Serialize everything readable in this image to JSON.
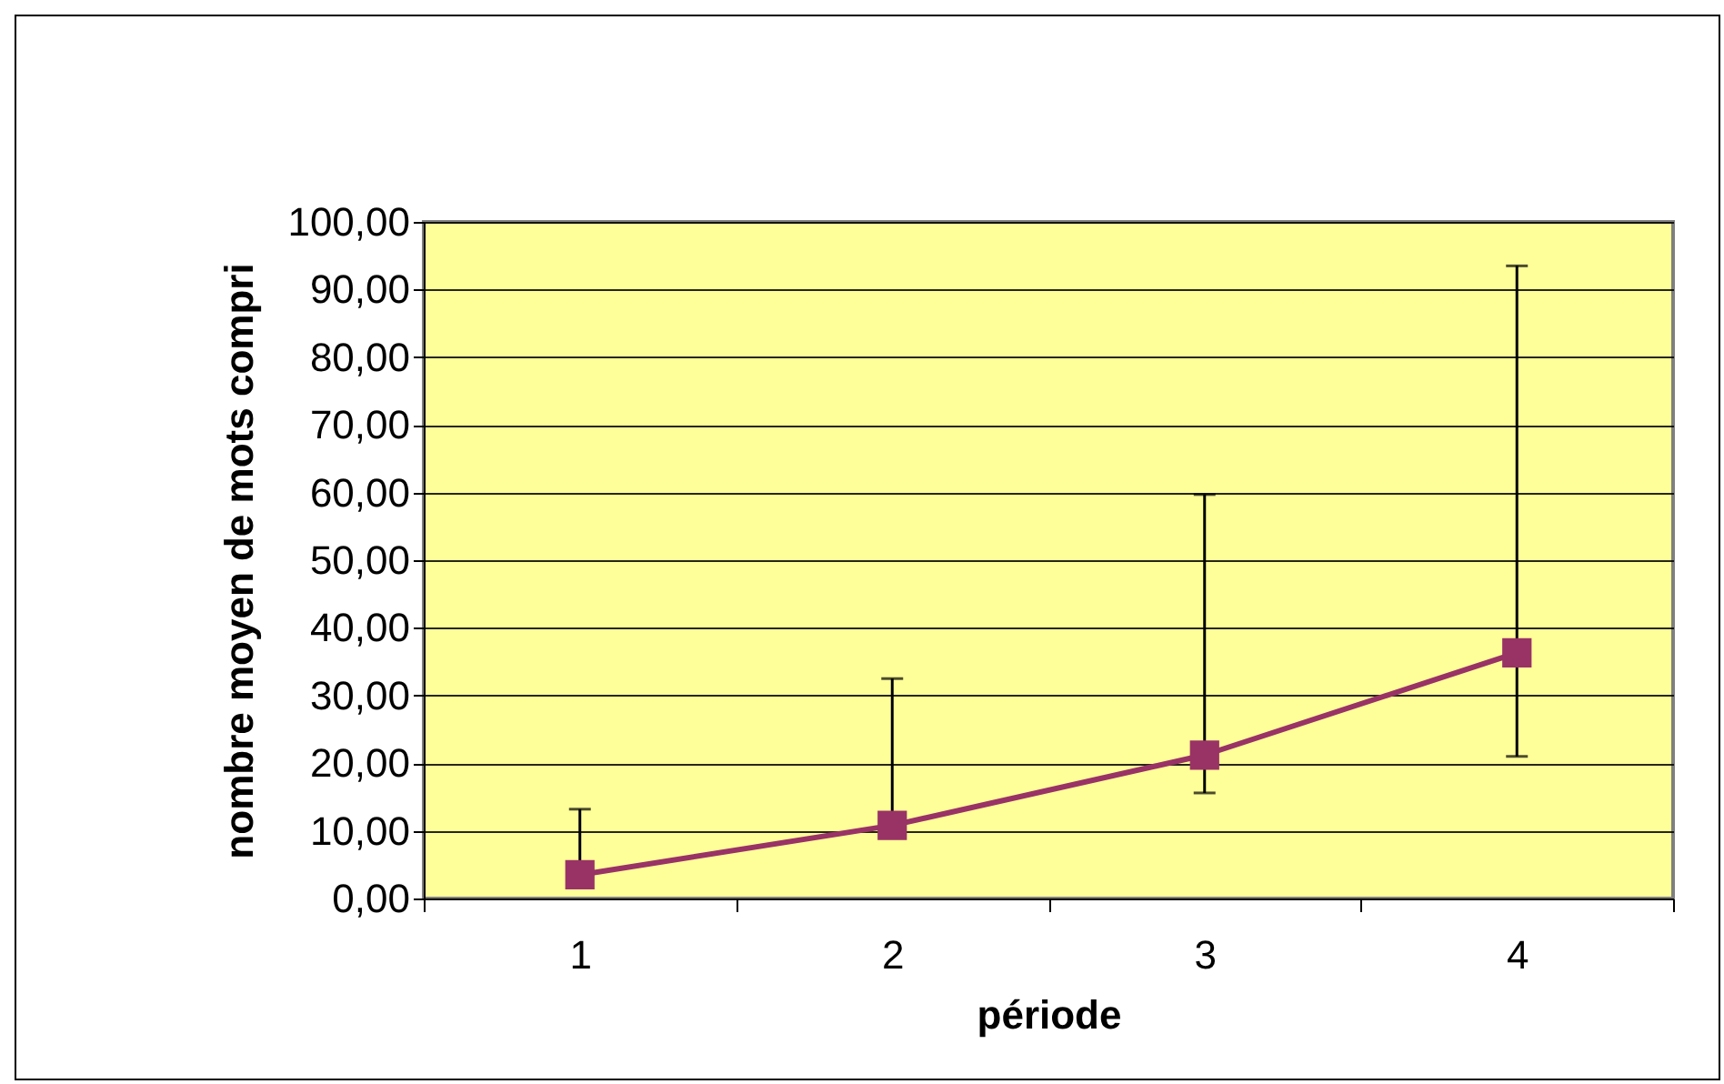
{
  "chart_data": {
    "type": "line",
    "xlabel": "période",
    "ylabel": "nombre moyen de mots compri",
    "categories": [
      "1",
      "2",
      "3",
      "4"
    ],
    "series": [
      {
        "color": "#993366",
        "values": [
          3.5,
          10.8,
          21.2,
          36.3
        ],
        "errors": [
          [
            3.5,
            13.2
          ],
          [
            10.8,
            32.5
          ],
          [
            15.6,
            59.7
          ],
          [
            21.0,
            93.5
          ]
        ]
      }
    ],
    "ylim": [
      0,
      100
    ],
    "yticks": [
      {
        "value": 0,
        "label": "0,00"
      },
      {
        "value": 10,
        "label": "10,00"
      },
      {
        "value": 20,
        "label": "20,00"
      },
      {
        "value": 30,
        "label": "30,00"
      },
      {
        "value": 40,
        "label": "40,00"
      },
      {
        "value": 50,
        "label": "50,00"
      },
      {
        "value": 60,
        "label": "60,00"
      },
      {
        "value": 70,
        "label": "70,00"
      },
      {
        "value": 80,
        "label": "80,00"
      },
      {
        "value": 90,
        "label": "90,00"
      },
      {
        "value": 100,
        "label": "100,00"
      }
    ],
    "grid": "y",
    "marker": "square",
    "line_style": "solid"
  }
}
